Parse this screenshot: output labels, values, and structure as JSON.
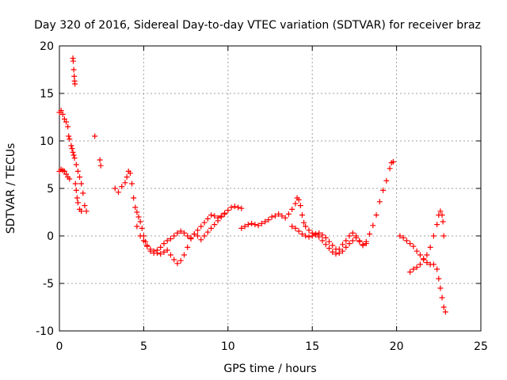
{
  "chart_data": {
    "type": "scatter",
    "title": "Day 320 of 2016, Sidereal Day-to-day VTEC variation (SDTVAR) for receiver braz",
    "xlabel": "GPS time / hours",
    "ylabel": "SDTVAR / TECUs",
    "xlim": [
      0,
      25
    ],
    "ylim": [
      -10,
      20
    ],
    "xticks": [
      "0",
      "5",
      "10",
      "15",
      "20",
      "25"
    ],
    "yticks": [
      "-10",
      "-5",
      "0",
      "5",
      "10",
      "15",
      "20"
    ],
    "grid": true,
    "marker": "plus",
    "color": "#ff0000",
    "series": [
      {
        "name": "SDTVAR",
        "x": [
          0.0,
          0.1,
          0.2,
          0.3,
          0.4,
          0.5,
          0.55,
          0.6,
          0.7,
          0.75,
          0.8,
          0.85,
          0.9,
          1.0,
          1.1,
          1.2,
          1.3,
          1.4,
          1.5,
          1.6,
          0.0,
          0.1,
          0.2,
          0.3,
          0.4,
          0.5,
          0.6,
          0.8,
          0.82,
          0.85,
          0.88,
          0.9,
          0.92,
          0.95,
          1.0,
          1.05,
          1.1,
          1.2,
          1.3,
          2.1,
          2.4,
          2.45,
          3.3,
          3.5,
          3.7,
          3.9,
          4.0,
          4.1,
          4.2,
          4.3,
          4.4,
          4.5,
          4.6,
          4.7,
          4.8,
          4.9,
          5.0,
          5.1,
          5.2,
          5.4,
          5.6,
          5.8,
          6.0,
          6.2,
          6.4,
          6.6,
          6.8,
          7.0,
          7.2,
          7.4,
          7.6,
          7.8,
          8.0,
          8.2,
          8.4,
          8.6,
          8.8,
          9.0,
          9.2,
          9.4,
          9.6,
          9.8,
          10.0,
          10.2,
          10.4,
          10.6,
          10.8,
          4.6,
          4.8,
          5.0,
          5.2,
          5.4,
          5.6,
          5.8,
          6.0,
          6.2,
          6.4,
          6.6,
          6.8,
          7.0,
          7.2,
          7.4,
          7.6,
          7.8,
          8.0,
          8.2,
          8.4,
          8.6,
          8.8,
          9.0,
          9.2,
          9.4,
          9.6,
          9.8,
          10.8,
          11.0,
          11.2,
          11.4,
          11.6,
          11.8,
          12.0,
          12.2,
          12.4,
          12.6,
          12.8,
          13.0,
          13.2,
          13.4,
          13.6,
          13.8,
          14.0,
          14.1,
          14.2,
          14.3,
          14.4,
          14.5,
          14.6,
          14.8,
          15.0,
          15.2,
          15.4,
          15.6,
          15.8,
          16.0,
          16.2,
          16.4,
          16.6,
          16.8,
          17.0,
          17.2,
          17.4,
          17.6,
          17.8,
          18.0,
          18.2,
          18.4,
          18.6,
          18.8,
          19.0,
          19.2,
          19.4,
          19.6,
          19.7,
          19.8,
          13.8,
          14.0,
          14.2,
          14.4,
          14.6,
          14.8,
          15.0,
          15.2,
          15.4,
          15.6,
          15.8,
          16.0,
          16.2,
          16.4,
          16.6,
          16.8,
          17.0,
          17.2,
          17.4,
          17.6,
          17.8,
          18.0,
          18.2,
          20.2,
          20.4,
          20.6,
          20.8,
          21.0,
          21.2,
          21.4,
          21.6,
          21.8,
          22.0,
          22.2,
          22.4,
          22.5,
          22.6,
          22.7,
          22.8,
          22.9,
          20.8,
          21.0,
          21.2,
          21.4,
          21.6,
          21.8,
          22.0,
          22.2,
          22.4,
          22.5,
          22.6,
          22.7,
          22.75,
          22.8
        ],
        "y": [
          13.0,
          13.2,
          12.8,
          12.3,
          12.0,
          11.5,
          10.5,
          10.2,
          9.5,
          9.2,
          8.8,
          8.5,
          8.2,
          7.5,
          6.8,
          6.2,
          5.5,
          4.5,
          3.2,
          2.6,
          6.8,
          7.0,
          6.9,
          6.8,
          6.5,
          6.2,
          6.0,
          18.7,
          18.4,
          17.5,
          16.8,
          16.3,
          16.0,
          5.5,
          4.8,
          4.0,
          3.5,
          2.8,
          2.6,
          10.5,
          8.0,
          7.4,
          5.0,
          4.6,
          5.2,
          5.6,
          6.2,
          6.8,
          6.6,
          5.5,
          4.0,
          3.0,
          2.5,
          2.0,
          1.5,
          0.8,
          0.0,
          -0.6,
          -1.1,
          -1.6,
          -1.8,
          -1.5,
          -1.2,
          -0.8,
          -0.5,
          -0.3,
          0.0,
          0.3,
          0.5,
          0.3,
          0.0,
          -0.2,
          0.2,
          0.6,
          1.0,
          1.4,
          1.8,
          2.2,
          2.1,
          1.9,
          2.1,
          2.4,
          2.7,
          3.0,
          3.1,
          3.0,
          2.9,
          1.0,
          0.0,
          -0.5,
          -1.0,
          -1.4,
          -1.6,
          -1.8,
          -1.9,
          -1.7,
          -1.5,
          -2.0,
          -2.5,
          -2.9,
          -2.6,
          -2.0,
          -1.2,
          -0.3,
          0.2,
          0.0,
          -0.4,
          0.0,
          0.4,
          0.8,
          1.2,
          1.6,
          2.0,
          2.3,
          0.8,
          1.0,
          1.2,
          1.3,
          1.2,
          1.1,
          1.3,
          1.5,
          1.7,
          2.0,
          2.1,
          2.3,
          2.1,
          1.9,
          2.3,
          2.8,
          3.4,
          4.0,
          3.8,
          3.2,
          2.2,
          1.4,
          1.0,
          0.6,
          0.3,
          0.1,
          -0.1,
          -0.5,
          -0.9,
          -1.3,
          -1.7,
          -1.9,
          -1.4,
          -0.9,
          -0.5,
          0.0,
          0.3,
          0.0,
          -0.5,
          -0.9,
          -0.6,
          0.2,
          1.1,
          2.2,
          3.6,
          4.8,
          5.8,
          7.1,
          7.7,
          7.8,
          1.0,
          0.8,
          0.5,
          0.2,
          0.0,
          -0.1,
          0.0,
          0.2,
          0.3,
          0.1,
          -0.2,
          -0.6,
          -1.0,
          -1.4,
          -1.8,
          -1.6,
          -1.2,
          -0.8,
          -0.5,
          -0.2,
          -0.6,
          -1.0,
          -0.8,
          0.0,
          -0.2,
          -0.5,
          -0.8,
          -1.1,
          -1.6,
          -2.0,
          -2.4,
          -2.8,
          -3.0,
          -3.0,
          -3.5,
          -4.5,
          -5.5,
          -6.5,
          -7.5,
          -8.0,
          -3.8,
          -3.5,
          -3.3,
          -3.0,
          -2.5,
          -2.0,
          -1.2,
          0.0,
          1.2,
          2.2,
          2.6,
          2.2,
          1.5,
          0.0
        ]
      }
    ]
  }
}
